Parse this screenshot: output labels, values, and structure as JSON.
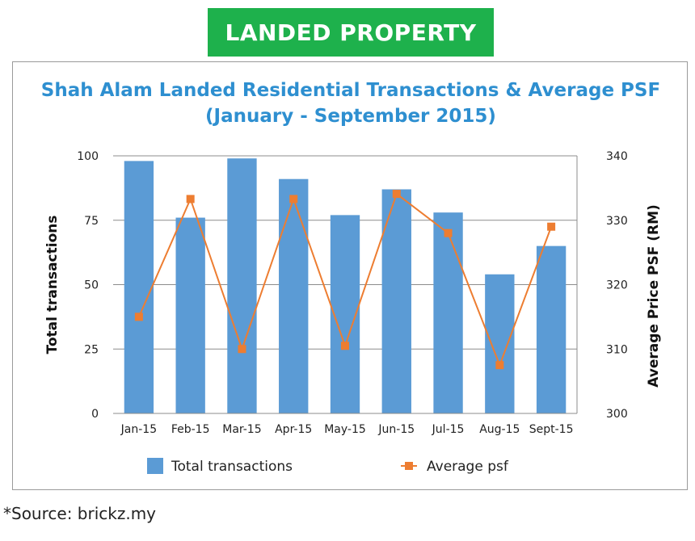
{
  "banner": {
    "label": "LANDED PROPERTY",
    "color": "#1eb14c"
  },
  "chart_data": {
    "type": "bar",
    "title_line1": "Shah Alam Landed Residential Transactions & Average PSF",
    "title_line2": "(January - September 2015)",
    "categories": [
      "Jan-15",
      "Feb-15",
      "Mar-15",
      "Apr-15",
      "May-15",
      "Jun-15",
      "Jul-15",
      "Aug-15",
      "Sept-15"
    ],
    "series": [
      {
        "name": "Total transactions",
        "type": "bar",
        "axis": "left",
        "color": "#5b9bd5",
        "values": [
          98,
          76,
          99,
          91,
          77,
          87,
          78,
          54,
          65
        ]
      },
      {
        "name": "Average psf",
        "type": "line",
        "axis": "right",
        "color": "#ed7d31",
        "values": [
          315,
          333.3,
          310,
          333.3,
          310.5,
          334.1,
          328,
          307.5,
          329
        ]
      }
    ],
    "ylabel": "Total transactions",
    "ylabel_right": "Average Price  PSF (RM)",
    "ylim": [
      0,
      100
    ],
    "ylim_right": [
      300,
      340
    ],
    "yticks": [
      "0",
      "25",
      "50",
      "75",
      "100"
    ],
    "yticks_right": [
      "300",
      "310",
      "320",
      "330",
      "340"
    ],
    "grid": true,
    "legend": "bottom"
  },
  "source": "*Source: brickz.my"
}
